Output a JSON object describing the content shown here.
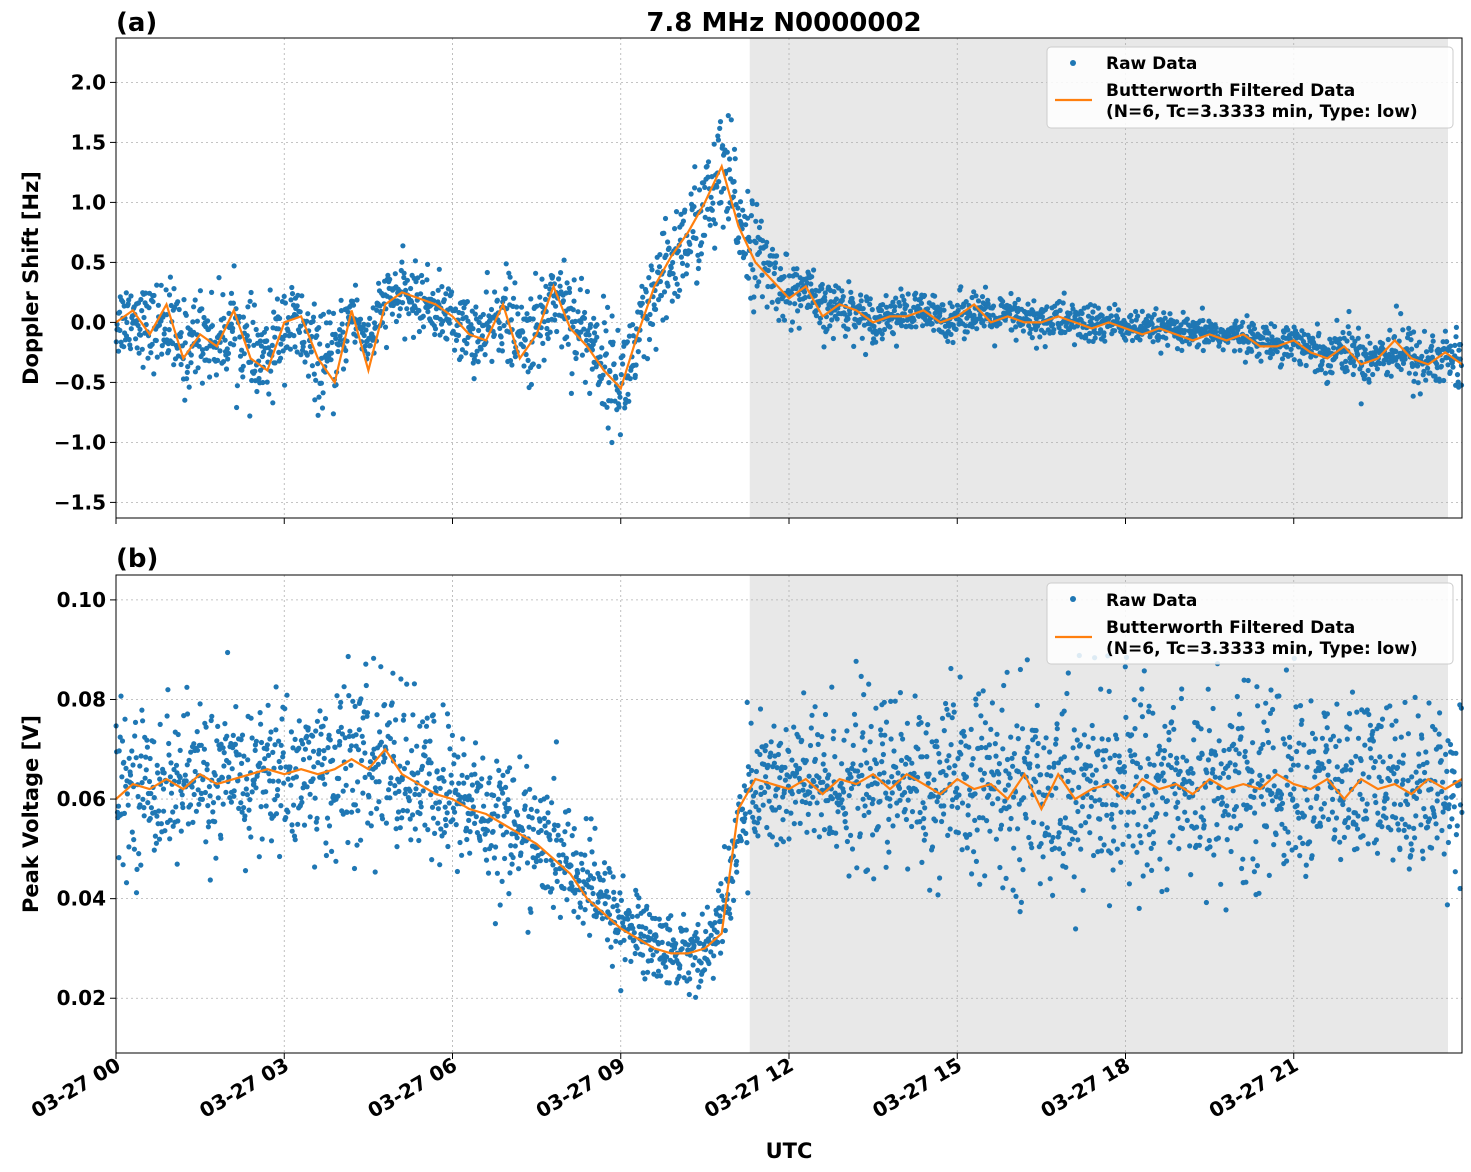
{
  "title": "7.8 MHz N0000002",
  "xlabel": "UTC",
  "x_tick_labels": [
    "03-27 00",
    "03-27 03",
    "03-27 06",
    "03-27 09",
    "03-27 12",
    "03-27 15",
    "03-27 18",
    "03-27 21"
  ],
  "colors": {
    "raw": "#1f77b4",
    "filtered": "#ff7f0e",
    "shade": "#e8e8e8"
  },
  "chart_data": [
    {
      "type": "scatter",
      "panel_label": "(a)",
      "title": "7.8 MHz N0000002",
      "xlabel": "",
      "ylabel": "Doppler Shift [Hz]",
      "x_unit": "hours UTC on 03-27",
      "xlim": [
        0,
        24
      ],
      "ylim": [
        -1.63,
        2.37
      ],
      "y_ticks": [
        -1.5,
        -1.0,
        -0.5,
        0.0,
        0.5,
        1.0,
        1.5,
        2.0
      ],
      "y_tick_labels": [
        "−1.5",
        "−1.0",
        "−0.5",
        "0.0",
        "0.5",
        "1.0",
        "1.5",
        "2.0"
      ],
      "shaded_region": [
        11.3,
        23.75
      ],
      "grid": true,
      "legend": "top-right",
      "legend_entries": [
        "Raw Data",
        "Butterworth Filtered Data",
        "(N=6, Tc=3.3333 min, Type: low)"
      ],
      "series": [
        {
          "name": "Butterworth Filtered Data",
          "kind": "line",
          "x": [
            0,
            0.3,
            0.6,
            0.9,
            1.2,
            1.5,
            1.8,
            2.1,
            2.4,
            2.7,
            3.0,
            3.3,
            3.6,
            3.9,
            4.2,
            4.5,
            4.8,
            5.1,
            5.4,
            5.7,
            6.0,
            6.3,
            6.6,
            6.9,
            7.2,
            7.5,
            7.8,
            8.1,
            8.4,
            8.7,
            9.0,
            9.3,
            9.6,
            9.9,
            10.2,
            10.5,
            10.8,
            11.1,
            11.4,
            11.7,
            12.0,
            12.3,
            12.6,
            12.9,
            13.2,
            13.5,
            13.8,
            14.1,
            14.4,
            14.7,
            15.0,
            15.3,
            15.6,
            15.9,
            16.2,
            16.5,
            16.8,
            17.1,
            17.4,
            17.7,
            18.0,
            18.3,
            18.6,
            18.9,
            19.2,
            19.5,
            19.8,
            20.1,
            20.4,
            20.7,
            21.0,
            21.3,
            21.6,
            21.9,
            22.2,
            22.5,
            22.8,
            23.1,
            23.4,
            23.7,
            24.0
          ],
          "y": [
            0.0,
            0.1,
            -0.1,
            0.15,
            -0.3,
            -0.1,
            -0.2,
            0.1,
            -0.3,
            -0.4,
            0.0,
            0.05,
            -0.3,
            -0.5,
            0.1,
            -0.4,
            0.15,
            0.25,
            0.2,
            0.15,
            0.05,
            -0.1,
            -0.15,
            0.15,
            -0.3,
            -0.1,
            0.3,
            -0.05,
            -0.2,
            -0.4,
            -0.55,
            -0.1,
            0.3,
            0.55,
            0.75,
            1.0,
            1.3,
            0.8,
            0.5,
            0.35,
            0.2,
            0.3,
            0.05,
            0.15,
            0.1,
            0.0,
            0.05,
            0.05,
            0.1,
            0.0,
            0.05,
            0.15,
            0.0,
            0.05,
            0.0,
            0.0,
            0.05,
            0.0,
            -0.05,
            0.0,
            -0.05,
            -0.1,
            -0.05,
            -0.1,
            -0.15,
            -0.1,
            -0.15,
            -0.1,
            -0.2,
            -0.2,
            -0.15,
            -0.25,
            -0.3,
            -0.2,
            -0.35,
            -0.3,
            -0.15,
            -0.3,
            -0.35,
            -0.25,
            -0.35
          ]
        },
        {
          "name": "Raw Data",
          "kind": "scatter",
          "x": [
            0,
            0.5,
            1.0,
            1.5,
            2.0,
            2.5,
            3.0,
            3.5,
            4.0,
            4.5,
            5.0,
            5.5,
            6.0,
            6.5,
            7.0,
            7.5,
            8.0,
            8.5,
            9.0,
            9.5,
            10.0,
            10.5,
            11.0,
            11.5,
            12.0,
            12.5,
            13.0,
            13.5,
            14.0,
            14.5,
            15.0,
            15.5,
            16.0,
            16.5,
            17.0,
            17.5,
            18.0,
            18.5,
            19.0,
            19.5,
            20.0,
            20.5,
            21.0,
            21.5,
            22.0,
            22.5,
            23.0,
            23.5,
            24.0
          ],
          "y": [
            0.0,
            0.05,
            -0.2,
            -0.05,
            -0.15,
            -0.3,
            0.0,
            -0.4,
            0.0,
            0.2,
            0.2,
            0.15,
            0.0,
            -0.1,
            0.1,
            -0.1,
            0.3,
            -0.05,
            -0.45,
            -0.2,
            0.5,
            0.8,
            1.2,
            0.6,
            0.3,
            0.15,
            0.1,
            0.05,
            0.1,
            0.05,
            0.05,
            0.05,
            0.05,
            0.0,
            0.0,
            0.0,
            0.0,
            -0.05,
            -0.05,
            -0.05,
            -0.1,
            -0.1,
            -0.15,
            -0.2,
            -0.2,
            -0.25,
            -0.3,
            -0.3,
            -0.35
          ],
          "spread": [
            0.35,
            0.35,
            0.45,
            0.4,
            0.4,
            0.45,
            0.4,
            0.45,
            0.35,
            0.3,
            0.3,
            0.3,
            0.3,
            0.35,
            0.4,
            0.45,
            0.5,
            0.5,
            0.5,
            0.5,
            0.5,
            0.55,
            0.6,
            0.4,
            0.3,
            0.25,
            0.25,
            0.2,
            0.2,
            0.2,
            0.2,
            0.2,
            0.2,
            0.2,
            0.2,
            0.2,
            0.15,
            0.15,
            0.15,
            0.15,
            0.15,
            0.15,
            0.2,
            0.2,
            0.25,
            0.25,
            0.3,
            0.3,
            0.3
          ]
        }
      ]
    },
    {
      "type": "scatter",
      "panel_label": "(b)",
      "xlabel": "UTC",
      "ylabel": "Peak Voltage [V]",
      "x_unit": "hours UTC on 03-27",
      "xlim": [
        0,
        24
      ],
      "ylim": [
        0.009,
        0.105
      ],
      "y_ticks": [
        0.02,
        0.04,
        0.06,
        0.08,
        0.1
      ],
      "y_tick_labels": [
        "0.02",
        "0.04",
        "0.06",
        "0.08",
        "0.10"
      ],
      "shaded_region": [
        11.3,
        23.75
      ],
      "grid": true,
      "legend": "top-right",
      "legend_entries": [
        "Raw Data",
        "Butterworth Filtered Data",
        "(N=6, Tc=3.3333 min, Type: low)"
      ],
      "series": [
        {
          "name": "Butterworth Filtered Data",
          "kind": "line",
          "x": [
            0,
            0.3,
            0.6,
            0.9,
            1.2,
            1.5,
            1.8,
            2.1,
            2.4,
            2.7,
            3.0,
            3.3,
            3.6,
            3.9,
            4.2,
            4.5,
            4.8,
            5.1,
            5.4,
            5.7,
            6.0,
            6.3,
            6.6,
            6.9,
            7.2,
            7.5,
            7.8,
            8.1,
            8.4,
            8.7,
            9.0,
            9.3,
            9.6,
            9.9,
            10.2,
            10.5,
            10.8,
            11.1,
            11.4,
            11.7,
            12.0,
            12.3,
            12.6,
            12.9,
            13.2,
            13.5,
            13.8,
            14.1,
            14.4,
            14.7,
            15.0,
            15.3,
            15.6,
            15.9,
            16.2,
            16.5,
            16.8,
            17.1,
            17.4,
            17.7,
            18.0,
            18.3,
            18.6,
            18.9,
            19.2,
            19.5,
            19.8,
            20.1,
            20.4,
            20.7,
            21.0,
            21.3,
            21.6,
            21.9,
            22.2,
            22.5,
            22.8,
            23.1,
            23.4,
            23.7,
            24.0
          ],
          "y": [
            0.06,
            0.063,
            0.062,
            0.064,
            0.062,
            0.065,
            0.063,
            0.064,
            0.065,
            0.066,
            0.065,
            0.066,
            0.065,
            0.066,
            0.068,
            0.066,
            0.07,
            0.065,
            0.063,
            0.061,
            0.06,
            0.058,
            0.057,
            0.055,
            0.053,
            0.051,
            0.048,
            0.045,
            0.04,
            0.037,
            0.034,
            0.032,
            0.03,
            0.029,
            0.029,
            0.03,
            0.033,
            0.058,
            0.064,
            0.063,
            0.062,
            0.064,
            0.061,
            0.064,
            0.063,
            0.065,
            0.062,
            0.065,
            0.063,
            0.061,
            0.064,
            0.062,
            0.063,
            0.06,
            0.065,
            0.058,
            0.065,
            0.06,
            0.062,
            0.063,
            0.06,
            0.064,
            0.062,
            0.063,
            0.061,
            0.064,
            0.062,
            0.063,
            0.062,
            0.065,
            0.063,
            0.062,
            0.064,
            0.06,
            0.064,
            0.062,
            0.063,
            0.061,
            0.064,
            0.062,
            0.064
          ]
        },
        {
          "name": "Raw Data",
          "kind": "scatter",
          "x": [
            0,
            0.5,
            1.0,
            1.5,
            2.0,
            2.5,
            3.0,
            3.5,
            4.0,
            4.5,
            5.0,
            5.5,
            6.0,
            6.5,
            7.0,
            7.5,
            8.0,
            8.5,
            9.0,
            9.5,
            10.0,
            10.5,
            11.0,
            11.5,
            12.0,
            12.5,
            13.0,
            13.5,
            14.0,
            14.5,
            15.0,
            15.5,
            16.0,
            16.5,
            17.0,
            17.5,
            18.0,
            18.5,
            19.0,
            19.5,
            20.0,
            20.5,
            21.0,
            21.5,
            22.0,
            22.5,
            23.0,
            23.5,
            24.0
          ],
          "y": [
            0.063,
            0.063,
            0.063,
            0.064,
            0.064,
            0.064,
            0.065,
            0.065,
            0.066,
            0.067,
            0.066,
            0.064,
            0.062,
            0.059,
            0.056,
            0.053,
            0.05,
            0.046,
            0.038,
            0.033,
            0.03,
            0.029,
            0.045,
            0.064,
            0.063,
            0.063,
            0.063,
            0.063,
            0.063,
            0.063,
            0.063,
            0.063,
            0.063,
            0.063,
            0.063,
            0.063,
            0.063,
            0.063,
            0.063,
            0.063,
            0.063,
            0.063,
            0.063,
            0.063,
            0.063,
            0.063,
            0.063,
            0.063,
            0.063
          ],
          "spread": [
            0.016,
            0.016,
            0.017,
            0.016,
            0.016,
            0.017,
            0.017,
            0.018,
            0.019,
            0.02,
            0.019,
            0.018,
            0.017,
            0.016,
            0.015,
            0.014,
            0.013,
            0.012,
            0.01,
            0.009,
            0.008,
            0.008,
            0.012,
            0.016,
            0.017,
            0.018,
            0.018,
            0.019,
            0.019,
            0.02,
            0.02,
            0.021,
            0.021,
            0.022,
            0.022,
            0.022,
            0.022,
            0.022,
            0.022,
            0.022,
            0.021,
            0.021,
            0.02,
            0.02,
            0.019,
            0.019,
            0.018,
            0.018,
            0.018
          ]
        }
      ]
    }
  ]
}
